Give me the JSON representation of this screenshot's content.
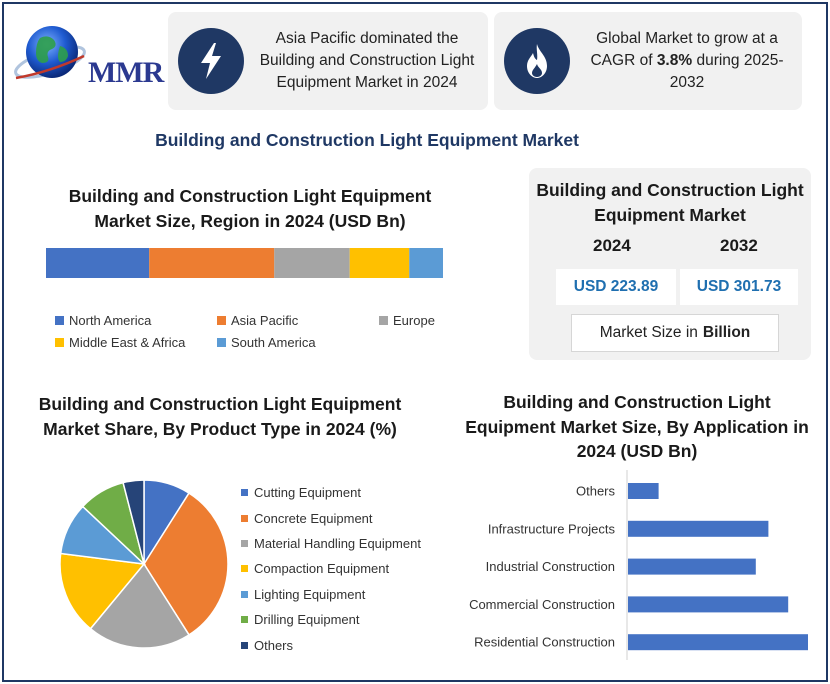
{
  "brand": {
    "logo_text": "MMR"
  },
  "header_cards": [
    {
      "icon": "lightning-bolt-icon",
      "text": "Asia Pacific dominated the Building and Construction Light Equipment Market in 2024"
    },
    {
      "icon": "flame-icon",
      "text_before": "Global Market to grow at a CAGR of ",
      "text_bold": "3.8%",
      "text_after": " during 2025-2032"
    }
  ],
  "main_title": "Building and Construction Light Equipment Market",
  "stats": {
    "title": "Building and Construction Light Equipment Market",
    "year_start": "2024",
    "year_end": "2032",
    "value_start": "USD 223.89",
    "value_end": "USD 301.73",
    "unit_prefix": "Market Size in",
    "unit_bold": "Billion"
  },
  "colors": {
    "navy": "#1f3864",
    "blue": "#4472c4",
    "orange": "#ed7d31",
    "gray": "#a5a5a5",
    "yellow": "#ffc000",
    "lightblue": "#5b9bd5",
    "green": "#70ad47",
    "darknavy": "#264478"
  },
  "chart_data": [
    {
      "type": "bar",
      "subtype": "stacked-horizontal-100",
      "title": "Building and Construction Light Equipment Market Size, Region in 2024 (USD Bn)",
      "series": [
        {
          "name": "North America",
          "value": 26,
          "color": "#4472c4"
        },
        {
          "name": "Asia Pacific",
          "value": 31.5,
          "color": "#ed7d31"
        },
        {
          "name": "Europe",
          "value": 19,
          "color": "#a5a5a5"
        },
        {
          "name": "Middle East & Africa",
          "value": 15,
          "color": "#ffc000"
        },
        {
          "name": "South America",
          "value": 8.5,
          "color": "#5b9bd5"
        }
      ],
      "legend_position": "bottom"
    },
    {
      "type": "pie",
      "title": "Building and Construction Light Equipment Market Share, By Product Type in 2024 (%)",
      "slices": [
        {
          "label": "Cutting Equipment",
          "value": 9,
          "color": "#4472c4"
        },
        {
          "label": "Concrete Equipment",
          "value": 32,
          "color": "#ed7d31"
        },
        {
          "label": "Material Handling Equipment",
          "value": 20,
          "color": "#a5a5a5"
        },
        {
          "label": "Compaction Equipment",
          "value": 16,
          "color": "#ffc000"
        },
        {
          "label": "Lighting Equipment",
          "value": 10,
          "color": "#5b9bd5"
        },
        {
          "label": "Drilling Equipment",
          "value": 9,
          "color": "#70ad47"
        },
        {
          "label": "Others",
          "value": 4,
          "color": "#264478"
        }
      ],
      "legend_position": "right"
    },
    {
      "type": "bar",
      "subtype": "horizontal",
      "title": "Building and Construction Light Equipment Market Size, By Application in 2024 (USD Bn)",
      "categories": [
        "Others",
        "Infrastructure Projects",
        "Industrial Construction",
        "Commercial Construction",
        "Residential Construction"
      ],
      "values": [
        17,
        78,
        71,
        89,
        100
      ],
      "color": "#4472c4",
      "xlim": [
        0,
        100
      ]
    }
  ]
}
